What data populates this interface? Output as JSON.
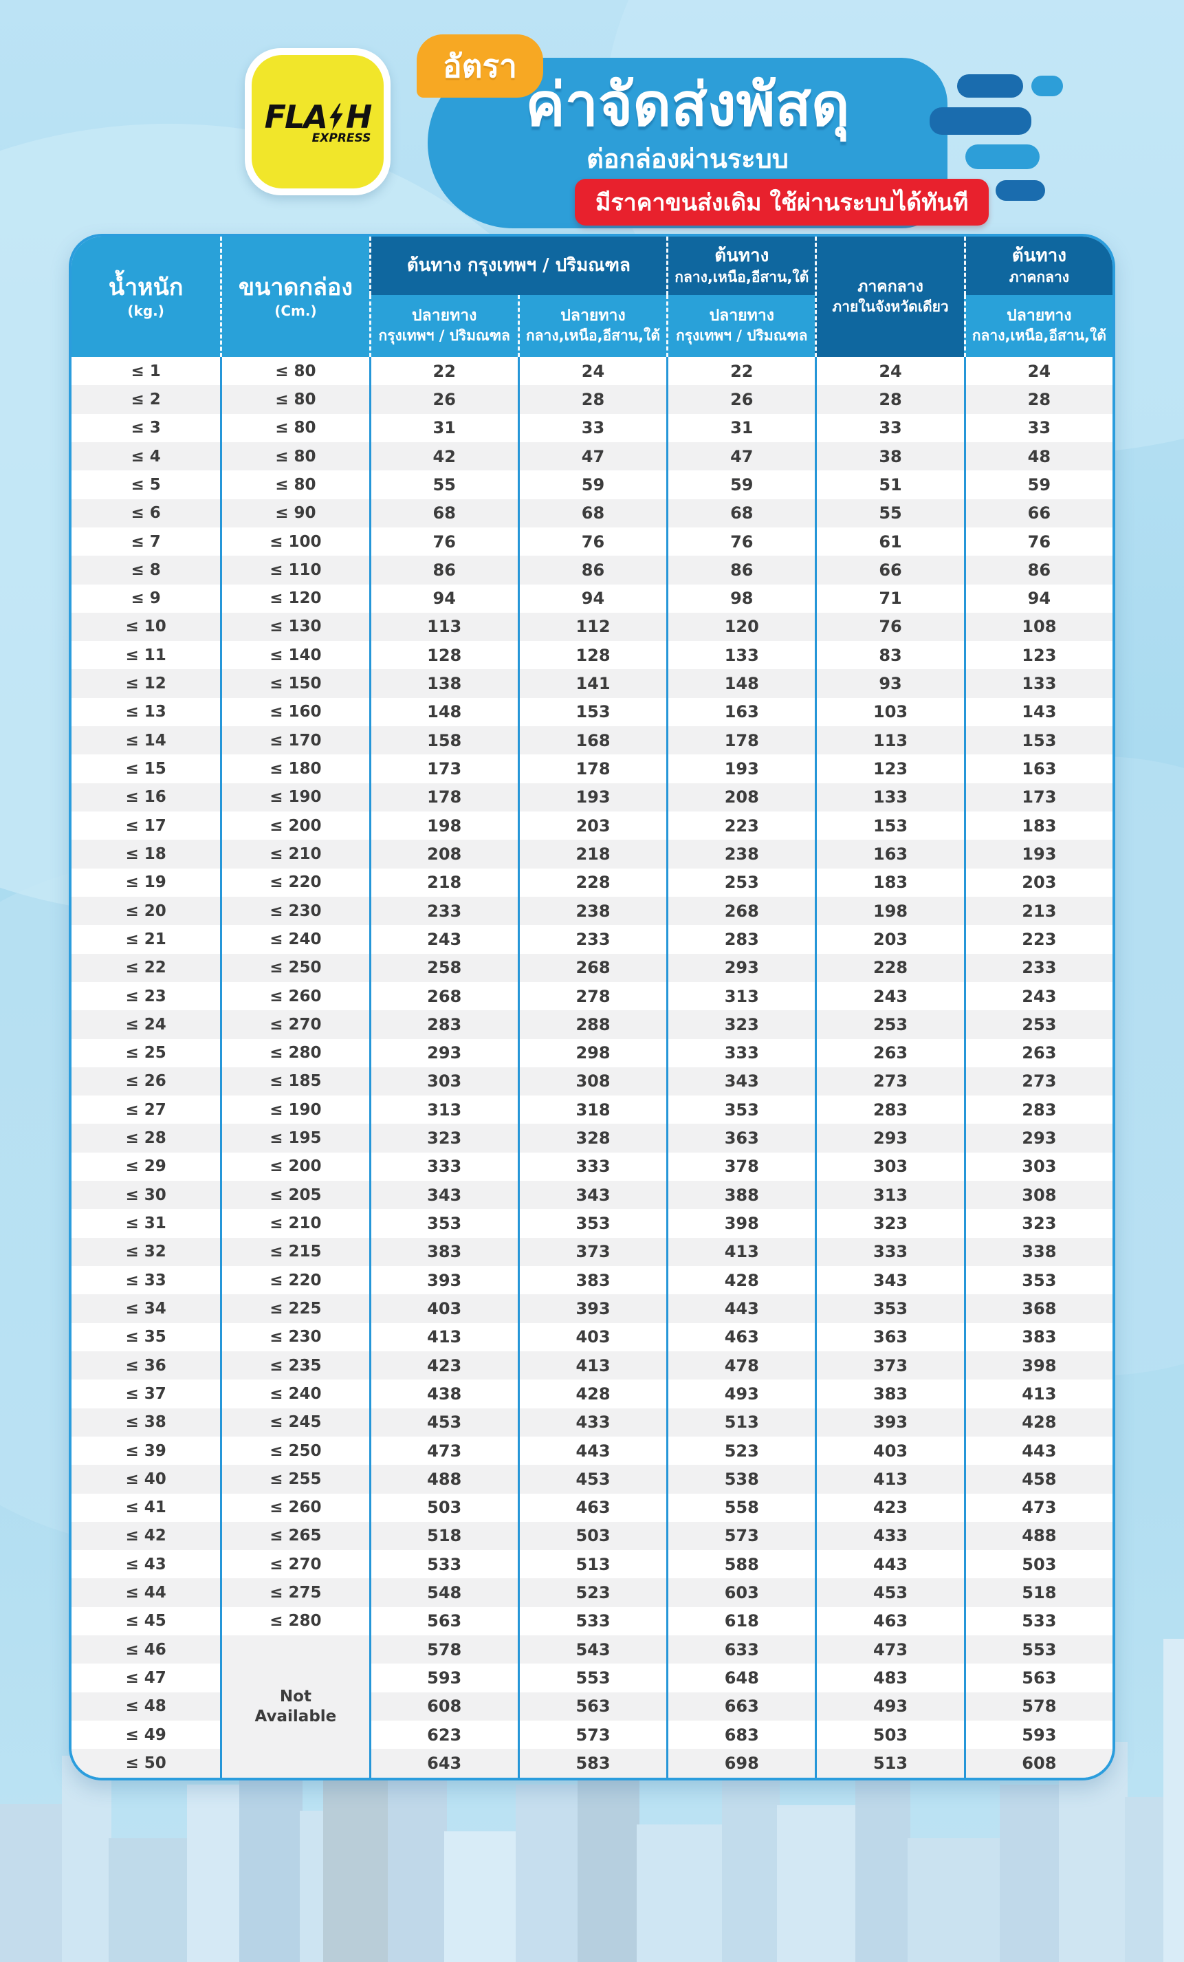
{
  "banner": {
    "badge": "อัตรา",
    "title": "ค่าจัดส่งพัสดุ",
    "subtitle": "ต่อกล่องผ่านระบบ",
    "ribbon": "มีราคาขนส่งเดิม ใช้ผ่านระบบได้ทันที"
  },
  "logo": {
    "main_left": "FLA",
    "main_right": "H",
    "sub": "EXPRESS"
  },
  "colors": {
    "brand_yellow": "#f1e62a",
    "banner_blue": "#2d9ed8",
    "header_light_blue": "#29a1d9",
    "header_dark_blue": "#0f679f",
    "body_border_blue": "#2596d8",
    "ribbon_red": "#e8212d",
    "badge_orange": "#f7a823",
    "row_stripe": "#f1f1f2",
    "text_dark": "#3c3c3c"
  },
  "table": {
    "col_weight": {
      "title": "น้ำหนัก",
      "unit": "(kg.)"
    },
    "col_box": {
      "title": "ขนาดกล่อง",
      "unit": "(Cm.)"
    },
    "group_bkk": {
      "label": "ต้นทาง กรุงเทพฯ / ปริมณฑล"
    },
    "group_region": {
      "line1": "ต้นทาง",
      "line2": "กลาง,เหนือ,อีสาน,ใต้"
    },
    "col_central": {
      "line1": "ภาคกลาง",
      "line2": "ภายในจังหวัดเดียว"
    },
    "group_central": {
      "line1": "ต้นทาง",
      "line2": "ภาคกลาง"
    },
    "sub_dest_bkk": {
      "line1": "ปลายทาง",
      "line2": "กรุงเทพฯ / ปริมณฑล"
    },
    "sub_dest_region": {
      "line1": "ปลายทาง",
      "line2": "กลาง,เหนือ,อีสาน,ใต้"
    },
    "not_available": {
      "line1": "Not",
      "line2": "Available"
    },
    "rows": [
      {
        "w": "≤ 1",
        "box": "≤ 80",
        "v": [
          22,
          24,
          22,
          24,
          24
        ]
      },
      {
        "w": "≤ 2",
        "box": "≤ 80",
        "v": [
          26,
          28,
          26,
          28,
          28
        ]
      },
      {
        "w": "≤ 3",
        "box": "≤ 80",
        "v": [
          31,
          33,
          31,
          33,
          33
        ]
      },
      {
        "w": "≤ 4",
        "box": "≤ 80",
        "v": [
          42,
          47,
          47,
          38,
          48
        ]
      },
      {
        "w": "≤ 5",
        "box": "≤ 80",
        "v": [
          55,
          59,
          59,
          51,
          59
        ]
      },
      {
        "w": "≤ 6",
        "box": "≤ 90",
        "v": [
          68,
          68,
          68,
          55,
          66
        ]
      },
      {
        "w": "≤ 7",
        "box": "≤ 100",
        "v": [
          76,
          76,
          76,
          61,
          76
        ]
      },
      {
        "w": "≤ 8",
        "box": "≤ 110",
        "v": [
          86,
          86,
          86,
          66,
          86
        ]
      },
      {
        "w": "≤ 9",
        "box": "≤ 120",
        "v": [
          94,
          94,
          98,
          71,
          94
        ]
      },
      {
        "w": "≤ 10",
        "box": "≤ 130",
        "v": [
          113,
          112,
          120,
          76,
          108
        ]
      },
      {
        "w": "≤ 11",
        "box": "≤ 140",
        "v": [
          128,
          128,
          133,
          83,
          123
        ]
      },
      {
        "w": "≤ 12",
        "box": "≤ 150",
        "v": [
          138,
          141,
          148,
          93,
          133
        ]
      },
      {
        "w": "≤ 13",
        "box": "≤ 160",
        "v": [
          148,
          153,
          163,
          103,
          143
        ]
      },
      {
        "w": "≤ 14",
        "box": "≤ 170",
        "v": [
          158,
          168,
          178,
          113,
          153
        ]
      },
      {
        "w": "≤ 15",
        "box": "≤ 180",
        "v": [
          173,
          178,
          193,
          123,
          163
        ]
      },
      {
        "w": "≤ 16",
        "box": "≤ 190",
        "v": [
          178,
          193,
          208,
          133,
          173
        ]
      },
      {
        "w": "≤ 17",
        "box": "≤ 200",
        "v": [
          198,
          203,
          223,
          153,
          183
        ]
      },
      {
        "w": "≤ 18",
        "box": "≤ 210",
        "v": [
          208,
          218,
          238,
          163,
          193
        ]
      },
      {
        "w": "≤ 19",
        "box": "≤ 220",
        "v": [
          218,
          228,
          253,
          183,
          203
        ]
      },
      {
        "w": "≤ 20",
        "box": "≤ 230",
        "v": [
          233,
          238,
          268,
          198,
          213
        ]
      },
      {
        "w": "≤ 21",
        "box": "≤ 240",
        "v": [
          243,
          233,
          283,
          203,
          223
        ]
      },
      {
        "w": "≤ 22",
        "box": "≤ 250",
        "v": [
          258,
          268,
          293,
          228,
          233
        ]
      },
      {
        "w": "≤ 23",
        "box": "≤ 260",
        "v": [
          268,
          278,
          313,
          243,
          243
        ]
      },
      {
        "w": "≤ 24",
        "box": "≤ 270",
        "v": [
          283,
          288,
          323,
          253,
          253
        ]
      },
      {
        "w": "≤ 25",
        "box": "≤ 280",
        "v": [
          293,
          298,
          333,
          263,
          263
        ]
      },
      {
        "w": "≤ 26",
        "box": "≤ 185",
        "v": [
          303,
          308,
          343,
          273,
          273
        ]
      },
      {
        "w": "≤ 27",
        "box": "≤ 190",
        "v": [
          313,
          318,
          353,
          283,
          283
        ]
      },
      {
        "w": "≤ 28",
        "box": "≤ 195",
        "v": [
          323,
          328,
          363,
          293,
          293
        ]
      },
      {
        "w": "≤ 29",
        "box": "≤ 200",
        "v": [
          333,
          333,
          378,
          303,
          303
        ]
      },
      {
        "w": "≤ 30",
        "box": "≤ 205",
        "v": [
          343,
          343,
          388,
          313,
          308
        ]
      },
      {
        "w": "≤ 31",
        "box": "≤ 210",
        "v": [
          353,
          353,
          398,
          323,
          323
        ]
      },
      {
        "w": "≤ 32",
        "box": "≤ 215",
        "v": [
          383,
          373,
          413,
          333,
          338
        ]
      },
      {
        "w": "≤ 33",
        "box": "≤ 220",
        "v": [
          393,
          383,
          428,
          343,
          353
        ]
      },
      {
        "w": "≤ 34",
        "box": "≤ 225",
        "v": [
          403,
          393,
          443,
          353,
          368
        ]
      },
      {
        "w": "≤ 35",
        "box": "≤ 230",
        "v": [
          413,
          403,
          463,
          363,
          383
        ]
      },
      {
        "w": "≤ 36",
        "box": "≤ 235",
        "v": [
          423,
          413,
          478,
          373,
          398
        ]
      },
      {
        "w": "≤ 37",
        "box": "≤ 240",
        "v": [
          438,
          428,
          493,
          383,
          413
        ]
      },
      {
        "w": "≤ 38",
        "box": "≤ 245",
        "v": [
          453,
          433,
          513,
          393,
          428
        ]
      },
      {
        "w": "≤ 39",
        "box": "≤ 250",
        "v": [
          473,
          443,
          523,
          403,
          443
        ]
      },
      {
        "w": "≤ 40",
        "box": "≤ 255",
        "v": [
          488,
          453,
          538,
          413,
          458
        ]
      },
      {
        "w": "≤ 41",
        "box": "≤ 260",
        "v": [
          503,
          463,
          558,
          423,
          473
        ]
      },
      {
        "w": "≤ 42",
        "box": "≤ 265",
        "v": [
          518,
          503,
          573,
          433,
          488
        ]
      },
      {
        "w": "≤ 43",
        "box": "≤ 270",
        "v": [
          533,
          513,
          588,
          443,
          503
        ]
      },
      {
        "w": "≤ 44",
        "box": "≤ 275",
        "v": [
          548,
          523,
          603,
          453,
          518
        ]
      },
      {
        "w": "≤ 45",
        "box": "≤ 280",
        "v": [
          563,
          533,
          618,
          463,
          533
        ]
      },
      {
        "w": "≤ 46",
        "box": null,
        "v": [
          578,
          543,
          633,
          473,
          553
        ]
      },
      {
        "w": "≤ 47",
        "box": null,
        "v": [
          593,
          553,
          648,
          483,
          563
        ]
      },
      {
        "w": "≤ 48",
        "box": null,
        "v": [
          608,
          563,
          663,
          493,
          578
        ]
      },
      {
        "w": "≤ 49",
        "box": null,
        "v": [
          623,
          573,
          683,
          503,
          593
        ]
      },
      {
        "w": "≤ 50",
        "box": null,
        "v": [
          643,
          583,
          698,
          513,
          608
        ]
      }
    ]
  }
}
